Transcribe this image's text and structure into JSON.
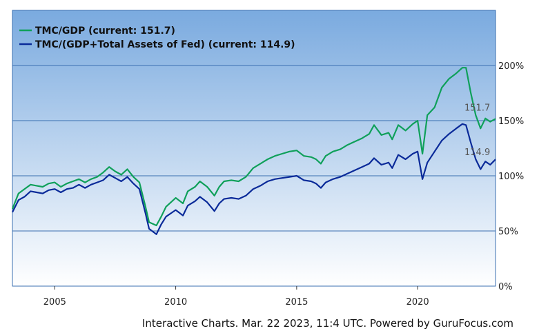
{
  "footer": "Interactive Charts. Mar. 22 2023, 11:4 UTC. Powered by GuruFocus.com",
  "colors": {
    "green": "#0fa05a",
    "blue": "#0a2a99",
    "grid": "#3a6fb0",
    "bg_top": "#7aaadf",
    "bg_bottom": "#ffffff"
  },
  "chart_data": {
    "type": "line",
    "title": "",
    "xlabel": "",
    "ylabel": "",
    "xlim": [
      2003.25,
      2023.22
    ],
    "ylim": [
      0,
      250
    ],
    "grid": true,
    "legend_position": "top-left",
    "x_ticks": [
      {
        "value": 2005,
        "label": "2005"
      },
      {
        "value": 2010,
        "label": "2010"
      },
      {
        "value": 2015,
        "label": "2015"
      },
      {
        "value": 2020,
        "label": "2020"
      }
    ],
    "y_ticks": [
      {
        "value": 0,
        "label": "0%"
      },
      {
        "value": 50,
        "label": "50%"
      },
      {
        "value": 100,
        "label": "100%"
      },
      {
        "value": 150,
        "label": "150%"
      },
      {
        "value": 200,
        "label": "200%"
      }
    ],
    "series": [
      {
        "name": "TMC/GDP (current: 151.7)",
        "color": "#0fa05a",
        "end_label": "151.7",
        "x": [
          2003.25,
          2003.5,
          2003.75,
          2004.0,
          2004.25,
          2004.5,
          2004.75,
          2005.0,
          2005.25,
          2005.5,
          2005.75,
          2006.0,
          2006.25,
          2006.5,
          2006.75,
          2007.0,
          2007.25,
          2007.5,
          2007.75,
          2008.0,
          2008.25,
          2008.5,
          2008.75,
          2008.9,
          2009.2,
          2009.4,
          2009.6,
          2009.8,
          2010.0,
          2010.3,
          2010.5,
          2010.8,
          2011.0,
          2011.3,
          2011.6,
          2011.8,
          2012.0,
          2012.3,
          2012.6,
          2012.9,
          2013.2,
          2013.5,
          2013.8,
          2014.1,
          2014.4,
          2014.7,
          2015.0,
          2015.3,
          2015.6,
          2015.8,
          2016.0,
          2016.2,
          2016.5,
          2016.8,
          2017.1,
          2017.4,
          2017.7,
          2018.0,
          2018.2,
          2018.5,
          2018.8,
          2018.95,
          2019.2,
          2019.5,
          2019.8,
          2020.0,
          2020.2,
          2020.4,
          2020.7,
          2021.0,
          2021.3,
          2021.6,
          2021.85,
          2022.0,
          2022.2,
          2022.4,
          2022.6,
          2022.8,
          2023.0,
          2023.22
        ],
        "y": [
          70,
          84,
          88,
          92,
          91,
          90,
          93,
          94,
          90,
          93,
          95,
          97,
          94,
          97,
          99,
          103,
          108,
          104,
          101,
          106,
          99,
          94,
          72,
          58,
          55,
          63,
          72,
          76,
          80,
          75,
          86,
          90,
          95,
          90,
          82,
          90,
          95,
          96,
          95,
          99,
          107,
          111,
          115,
          118,
          120,
          122,
          123,
          118,
          117,
          115,
          111,
          118,
          122,
          124,
          128,
          131,
          134,
          138,
          146,
          137,
          139,
          133,
          146,
          141,
          147,
          150,
          120,
          155,
          162,
          180,
          188,
          193,
          198,
          198,
          175,
          155,
          143,
          152,
          149,
          151.7
        ]
      },
      {
        "name": "TMC/(GDP+Total Assets of Fed) (current: 114.9)",
        "color": "#0a2a99",
        "end_label": "114.9",
        "x": [
          2003.25,
          2003.5,
          2003.75,
          2004.0,
          2004.25,
          2004.5,
          2004.75,
          2005.0,
          2005.25,
          2005.5,
          2005.75,
          2006.0,
          2006.25,
          2006.5,
          2006.75,
          2007.0,
          2007.25,
          2007.5,
          2007.75,
          2008.0,
          2008.25,
          2008.5,
          2008.75,
          2008.9,
          2009.2,
          2009.4,
          2009.6,
          2009.8,
          2010.0,
          2010.3,
          2010.5,
          2010.8,
          2011.0,
          2011.3,
          2011.6,
          2011.8,
          2012.0,
          2012.3,
          2012.6,
          2012.9,
          2013.2,
          2013.5,
          2013.8,
          2014.1,
          2014.4,
          2014.7,
          2015.0,
          2015.3,
          2015.6,
          2015.8,
          2016.0,
          2016.2,
          2016.5,
          2016.8,
          2017.1,
          2017.4,
          2017.7,
          2018.0,
          2018.2,
          2018.5,
          2018.8,
          2018.95,
          2019.2,
          2019.5,
          2019.8,
          2020.0,
          2020.2,
          2020.4,
          2020.7,
          2021.0,
          2021.3,
          2021.6,
          2021.85,
          2022.0,
          2022.2,
          2022.4,
          2022.6,
          2022.8,
          2023.0,
          2023.22
        ],
        "y": [
          67,
          78,
          81,
          86,
          85,
          84,
          87,
          88,
          85,
          88,
          89,
          92,
          89,
          92,
          94,
          96,
          101,
          98,
          95,
          99,
          93,
          88,
          66,
          52,
          47,
          56,
          63,
          66,
          69,
          64,
          73,
          77,
          81,
          76,
          68,
          75,
          79,
          80,
          79,
          82,
          88,
          91,
          95,
          97,
          98,
          99,
          100,
          96,
          95,
          93,
          89,
          94,
          97,
          99,
          102,
          105,
          108,
          111,
          116,
          110,
          112,
          107,
          119,
          115,
          120,
          122,
          97,
          112,
          122,
          132,
          138,
          143,
          147,
          146,
          130,
          115,
          106,
          113,
          110,
          114.9
        ]
      }
    ]
  }
}
